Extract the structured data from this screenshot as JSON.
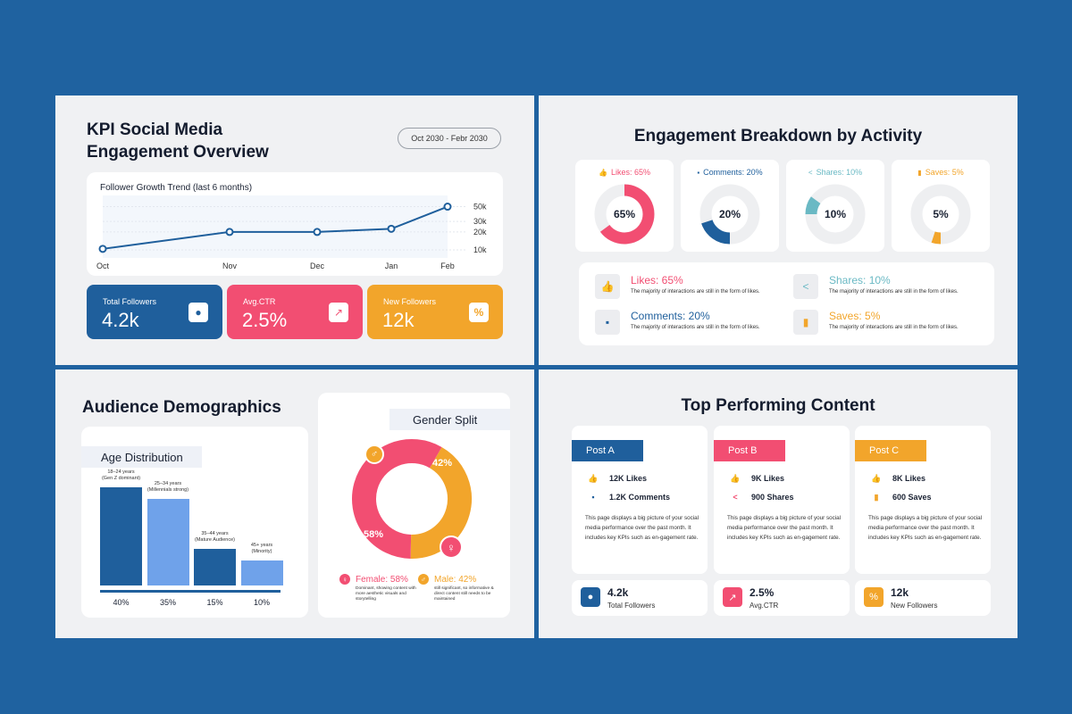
{
  "colors": {
    "blue": "#1f5f9c",
    "pink": "#f24e72",
    "orange": "#f2a52b",
    "teal": "#6ab9c4",
    "lightblue": "#6fa2ea"
  },
  "kpi": {
    "title": "KPI Social Media Engagement Overview",
    "date_range": "Oct 2030 - Febr 2030",
    "chart_title": "Follower Growth Trend (last 6 months)",
    "stats": [
      {
        "label": "Total Followers",
        "value": "4.2k",
        "icon": "followers-icon"
      },
      {
        "label": "Avg.CTR",
        "value": "2.5%",
        "icon": "ctr-icon"
      },
      {
        "label": "New Followers",
        "value": "12k",
        "icon": "percent-icon"
      }
    ]
  },
  "chart_data": {
    "type": "line",
    "x": [
      "Oct",
      "Nov",
      "Dec",
      "Jan",
      "Feb"
    ],
    "yticks": [
      "50k",
      "30k",
      "20k",
      "10k"
    ],
    "values": [
      12,
      28,
      28,
      31,
      52
    ],
    "grid": true
  },
  "breakdown": {
    "title": "Engagement Breakdown by Activity",
    "donuts": [
      {
        "label": "Likes: 65%",
        "value": 65,
        "display": "65%",
        "color": "#f24e72",
        "icon": "thumbs-up-icon"
      },
      {
        "label": "Comments: 20%",
        "value": 20,
        "display": "20%",
        "color": "#1f5f9c",
        "icon": "comment-icon"
      },
      {
        "label": "Shares: 10%",
        "value": 10,
        "display": "10%",
        "color": "#6ab9c4",
        "icon": "share-icon"
      },
      {
        "label": "Saves: 5%",
        "value": 5,
        "display": "5%",
        "color": "#f2a52b",
        "icon": "bookmark-icon"
      }
    ],
    "legend": [
      {
        "title": "Likes: 65%",
        "desc": "The majority of interactions are still in the form of likes.",
        "color": "#f24e72",
        "glyph": "👍"
      },
      {
        "title": "Shares: 10%",
        "desc": "The majority of interactions are still in the form of likes.",
        "color": "#6ab9c4",
        "glyph": "<"
      },
      {
        "title": "Comments: 20%",
        "desc": "The majority of interactions are still in the form of likes.",
        "color": "#1f5f9c",
        "glyph": "▪"
      },
      {
        "title": "Saves: 5%",
        "desc": "The majority of interactions are still in the form of likes.",
        "color": "#f2a52b",
        "glyph": "▮"
      }
    ]
  },
  "demographics": {
    "title": "Audience Demographics",
    "age_title": "Age Distribution",
    "age_bars": [
      {
        "label": "18–24 years\n(Gen Z dominant)",
        "value": 40,
        "display": "40%",
        "color": "#1f5f9c"
      },
      {
        "label": "25–34 years\n(Millennials strong)",
        "value": 35,
        "display": "35%",
        "color": "#6fa2ea"
      },
      {
        "label": "35–44 years\n(Mature Audience)",
        "value": 15,
        "display": "15%",
        "color": "#1f5f9c"
      },
      {
        "label": "45+ years\n(Minority)",
        "value": 10,
        "display": "10%",
        "color": "#6fa2ea"
      }
    ],
    "gender_title": "Gender Split",
    "gender": [
      {
        "label": "Female: 58%",
        "value": 58,
        "display": "58%",
        "color": "#f24e72",
        "desc": "Dominant, showing content with more aesthetic visuals and storytelling"
      },
      {
        "label": "Male: 42%",
        "value": 42,
        "display": "42%",
        "color": "#f2a52b",
        "desc": "still significant, so informative & direct content still needs to be maintained"
      }
    ]
  },
  "top": {
    "title": "Top Performing Content",
    "posts": [
      {
        "name": "Post A",
        "color": "#1f5f9c",
        "r1": "12K Likes",
        "r2": "1.2K Comments",
        "desc": "This page displays a big picture of your social media performance over the past month. It includes key KPIs such as en-gagement rate."
      },
      {
        "name": "Post B",
        "color": "#f24e72",
        "r1": "9K Likes",
        "r2": "900 Shares",
        "desc": "This page displays a big picture of your social media performance over the past month. It includes key KPIs such as en-gagement rate."
      },
      {
        "name": "Post C",
        "color": "#f2a52b",
        "r1": "8K Likes",
        "r2": "600 Saves",
        "desc": "This page displays a big picture of your social media performance over the past month. It includes key KPIs such as en-gagement rate."
      }
    ],
    "minis": [
      {
        "value": "4.2k",
        "label": "Total Followers",
        "color": "#1f5f9c"
      },
      {
        "value": "2.5%",
        "label": "Avg.CTR",
        "color": "#f24e72"
      },
      {
        "value": "12k",
        "label": "New Followers",
        "color": "#f2a52b"
      }
    ]
  }
}
